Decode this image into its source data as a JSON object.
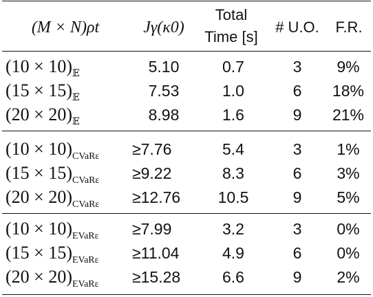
{
  "table": {
    "headers": {
      "col1": "(M × N)ρt",
      "col2": "Jγ(κ0)",
      "col3_line1": "Total",
      "col3_line2": "Time [s]",
      "col4": "# U.O.",
      "col5": "F.R."
    },
    "groups": [
      {
        "rows": [
          {
            "size": "(10 × 10)",
            "sub": "𝔼",
            "j": "5.10",
            "time": "0.7",
            "uo": "3",
            "fr": "9%"
          },
          {
            "size": "(15 × 15)",
            "sub": "𝔼",
            "j": "7.53",
            "time": "1.0",
            "uo": "6",
            "fr": "18%"
          },
          {
            "size": "(20 × 20)",
            "sub": "𝔼",
            "j": "8.98",
            "time": "1.6",
            "uo": "9",
            "fr": "21%"
          }
        ]
      },
      {
        "rows": [
          {
            "size": "(10 × 10)",
            "sub": "CVaRε",
            "j": "≥7.76",
            "time": "5.4",
            "uo": "3",
            "fr": "1%"
          },
          {
            "size": "(15 × 15)",
            "sub": "CVaRε",
            "j": "≥9.22",
            "time": "8.3",
            "uo": "6",
            "fr": "3%"
          },
          {
            "size": "(20 × 20)",
            "sub": "CVaRε",
            "j": "≥12.76",
            "time": "10.5",
            "uo": "9",
            "fr": "5%"
          }
        ]
      },
      {
        "rows": [
          {
            "size": "(10 × 10)",
            "sub": "EVaRε",
            "j": "≥7.99",
            "time": "3.2",
            "uo": "3",
            "fr": "0%"
          },
          {
            "size": "(15 × 15)",
            "sub": "EVaRε",
            "j": "≥11.04",
            "time": "4.9",
            "uo": "6",
            "fr": "0%"
          },
          {
            "size": "(20 × 20)",
            "sub": "EVaRε",
            "j": "≥15.28",
            "time": "6.6",
            "uo": "9",
            "fr": "2%"
          }
        ]
      }
    ]
  }
}
